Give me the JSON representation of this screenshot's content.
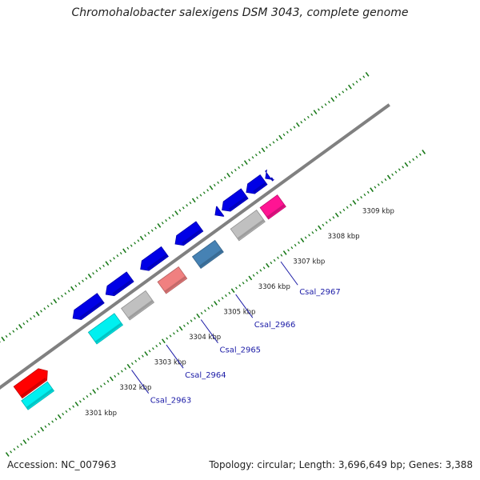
{
  "title": "Chromohalobacter salexigens DSM 3043, complete genome",
  "footer": {
    "accession": "Accession: NC_007963",
    "topology": "Topology: circular; Length: 3,696,649 bp; Genes: 3,388"
  },
  "colors": {
    "backbone": "#808080",
    "cds_forward": "#0000e6",
    "cds_cyan": "#00f0f0",
    "cds_red": "#ff0000",
    "cds_gray": "#c0c0c0",
    "cds_pink": "#f08080",
    "cds_steelblue": "#4682b4",
    "cds_magenta": "#ff1493",
    "ticks": "#1a7a1a",
    "gene_label": "#1a1aa6"
  },
  "tick_labels": [
    {
      "text": "3301 kbp",
      "pos": 3301.0
    },
    {
      "text": "3302 kbp",
      "pos": 3302.0
    },
    {
      "text": "3303 kbp",
      "pos": 3303.0
    },
    {
      "text": "3304 kbp",
      "pos": 3304.0
    },
    {
      "text": "3305 kbp",
      "pos": 3305.0
    },
    {
      "text": "3306 kbp",
      "pos": 3306.0
    },
    {
      "text": "3307 kbp",
      "pos": 3307.0
    },
    {
      "text": "3308 kbp",
      "pos": 3308.0
    },
    {
      "text": "3309 kbp",
      "pos": 3309.0
    }
  ],
  "gene_labels": [
    {
      "text": "Csal_2963",
      "pos": 3302.5
    },
    {
      "text": "Csal_2964",
      "pos": 3303.5
    },
    {
      "text": "Csal_2965",
      "pos": 3304.5
    },
    {
      "text": "Csal_2966",
      "pos": 3305.5
    },
    {
      "text": "Csal_2967",
      "pos": 3306.8
    }
  ],
  "features": [
    {
      "track": "forward",
      "start": 3302.1,
      "end": 3302.9,
      "color": "cds_forward",
      "arrow": "start"
    },
    {
      "track": "forward",
      "start": 3303.05,
      "end": 3303.75,
      "color": "cds_forward",
      "arrow": "start"
    },
    {
      "track": "forward",
      "start": 3304.05,
      "end": 3304.75,
      "color": "cds_forward",
      "arrow": "start"
    },
    {
      "track": "forward",
      "start": 3305.05,
      "end": 3305.75,
      "color": "cds_forward",
      "arrow": "start"
    },
    {
      "track": "forward",
      "start": 3306.2,
      "end": 3306.35,
      "color": "cds_forward",
      "arrow": "start"
    },
    {
      "track": "forward",
      "start": 3306.4,
      "end": 3307.05,
      "color": "cds_forward",
      "arrow": "start"
    },
    {
      "track": "forward",
      "start": 3307.1,
      "end": 3307.6,
      "color": "cds_forward",
      "arrow": "start"
    },
    {
      "track": "forward",
      "start": 3307.65,
      "end": 3307.75,
      "color": "cds_forward",
      "arrow": "start"
    },
    {
      "track": "middle",
      "start": 3300.05,
      "end": 3300.9,
      "color": "cds_red",
      "arrow": "end"
    },
    {
      "track": "middle",
      "start": 3302.2,
      "end": 3302.95,
      "color": "cds_cyan",
      "arrow": "none"
    },
    {
      "track": "middle",
      "start": 3303.15,
      "end": 3303.85,
      "color": "cds_gray",
      "arrow": "none"
    },
    {
      "track": "middle",
      "start": 3304.2,
      "end": 3304.8,
      "color": "cds_pink",
      "arrow": "none"
    },
    {
      "track": "middle",
      "start": 3305.2,
      "end": 3305.85,
      "color": "cds_steelblue",
      "arrow": "none"
    },
    {
      "track": "middle",
      "start": 3306.3,
      "end": 3307.05,
      "color": "cds_gray",
      "arrow": "none"
    },
    {
      "track": "middle",
      "start": 3307.15,
      "end": 3307.65,
      "color": "cds_magenta",
      "arrow": "none"
    },
    {
      "track": "outer",
      "start": 3300.0,
      "end": 3300.75,
      "color": "cds_cyan",
      "arrow": "none"
    }
  ]
}
